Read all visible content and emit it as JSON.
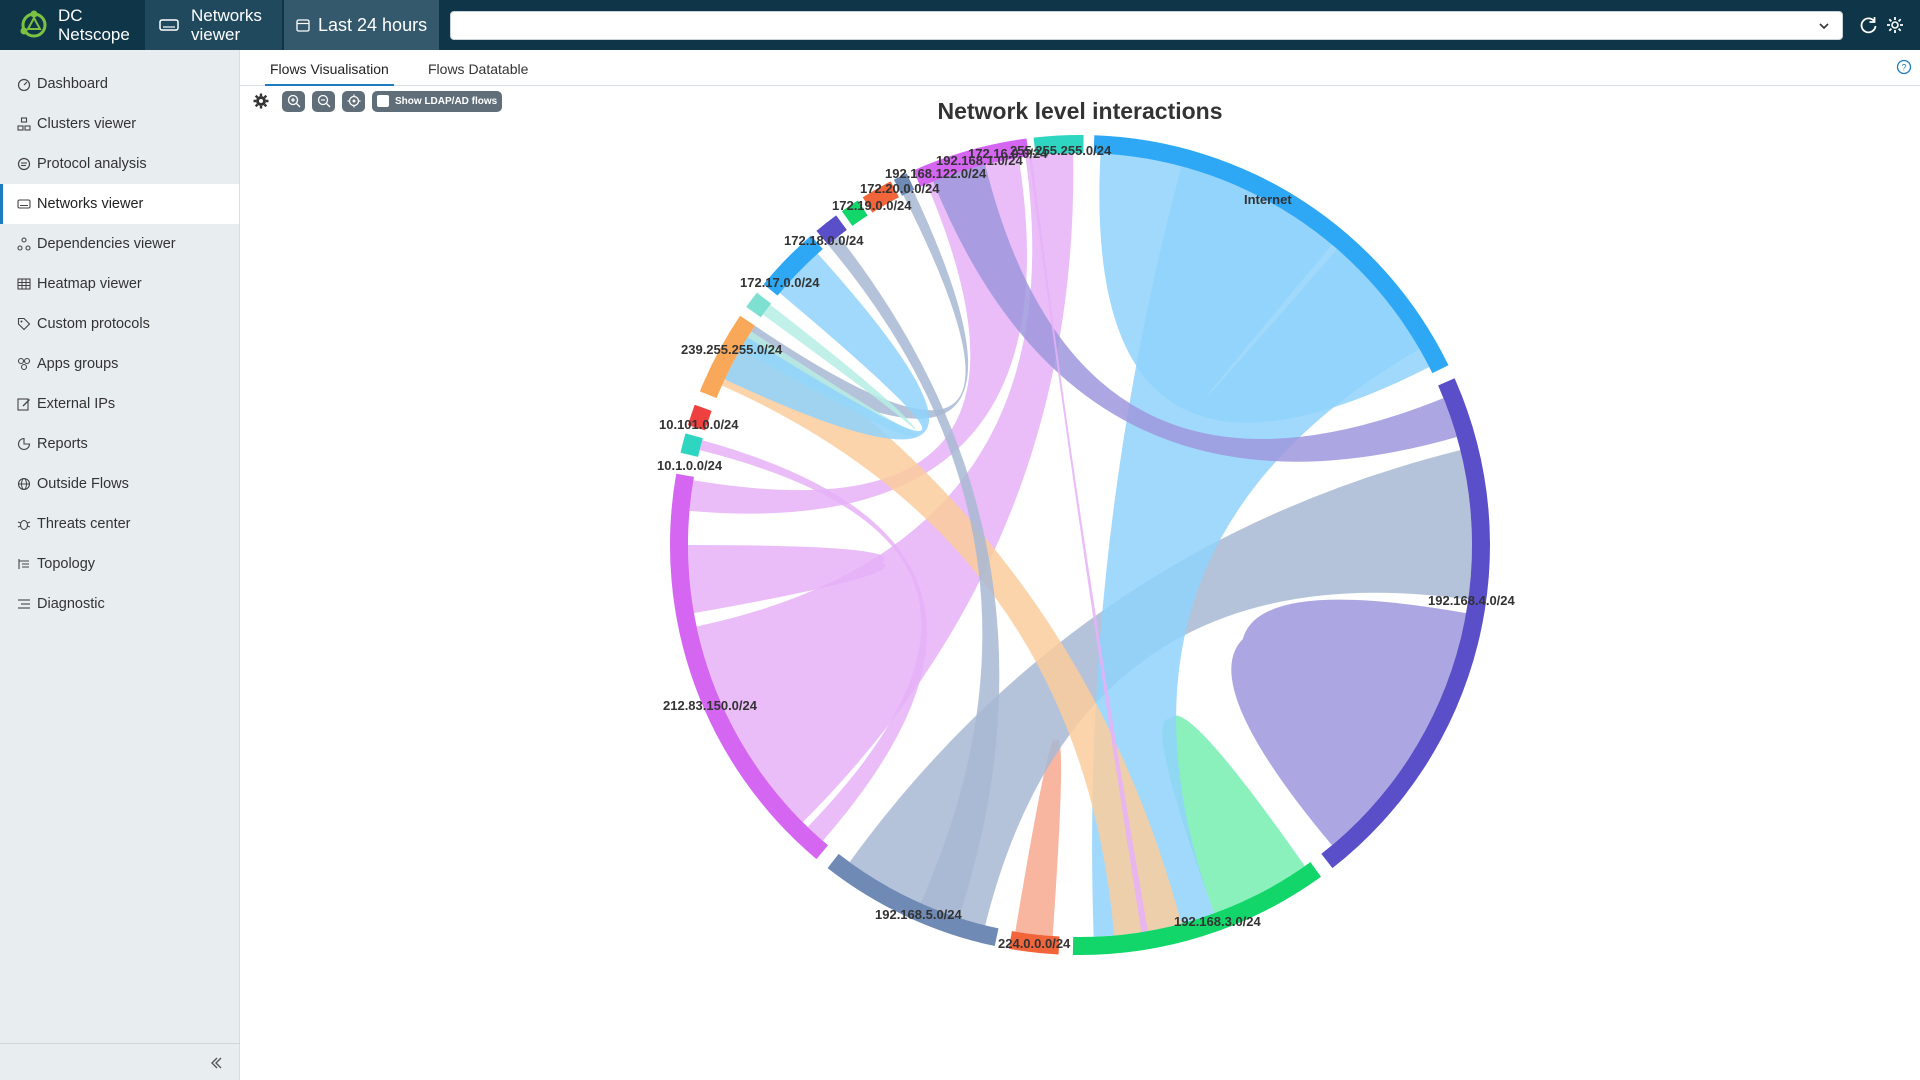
{
  "app": {
    "brand_line1": "DC",
    "brand_line2": "Netscope",
    "context_line1": "Networks",
    "context_line2": "viewer",
    "time_range": "Last 24 hours",
    "search_value": ""
  },
  "sidebar": {
    "items": [
      {
        "label": "Dashboard",
        "icon": "dashboard-icon"
      },
      {
        "label": "Clusters viewer",
        "icon": "clusters-icon"
      },
      {
        "label": "Protocol analysis",
        "icon": "protocol-icon"
      },
      {
        "label": "Networks viewer",
        "icon": "networks-icon"
      },
      {
        "label": "Dependencies viewer",
        "icon": "dependencies-icon"
      },
      {
        "label": "Heatmap viewer",
        "icon": "heatmap-icon"
      },
      {
        "label": "Custom protocols",
        "icon": "tag-icon"
      },
      {
        "label": "Apps groups",
        "icon": "apps-icon"
      },
      {
        "label": "External IPs",
        "icon": "edit-icon"
      },
      {
        "label": "Reports",
        "icon": "reports-icon"
      },
      {
        "label": "Outside Flows",
        "icon": "globe-icon"
      },
      {
        "label": "Threats center",
        "icon": "bug-icon"
      },
      {
        "label": "Topology",
        "icon": "topology-icon"
      },
      {
        "label": "Diagnostic",
        "icon": "diagnostic-icon"
      }
    ],
    "active": "Networks viewer"
  },
  "tabs": {
    "visualisation": "Flows Visualisation",
    "datatable": "Flows Datatable",
    "active": "Flows Visualisation"
  },
  "toolbar": {
    "ldap_label": "Show LDAP/AD flows",
    "ldap_checked": false
  },
  "chart_data": {
    "type": "chord",
    "title": "Network level interactions",
    "nodes": [
      {
        "name": "Internet",
        "color": "#2ea8f5"
      },
      {
        "name": "192.168.4.0/24",
        "color": "#5a4fc8"
      },
      {
        "name": "192.168.3.0/24",
        "color": "#12d669"
      },
      {
        "name": "224.0.0.0/24",
        "color": "#f2653a"
      },
      {
        "name": "192.168.5.0/24",
        "color": "#6f8ab4"
      },
      {
        "name": "212.83.150.0/24",
        "color": "#d466f2"
      },
      {
        "name": "10.1.0.0/24",
        "color": "#2ed5c1"
      },
      {
        "name": "10.101.0.0/24",
        "color": "#ef4040"
      },
      {
        "name": "239.255.255.0/24",
        "color": "#f9a85a"
      },
      {
        "name": "172.17.0.0/24",
        "color": "#7de0d0"
      },
      {
        "name": "172.18.0.0/24",
        "color": "#2ea8f5"
      },
      {
        "name": "172.19.0.0/24",
        "color": "#5a4fc8"
      },
      {
        "name": "172.20.0.0/24",
        "color": "#12d669"
      },
      {
        "name": "192.168.122.0/24",
        "color": "#f2653a"
      },
      {
        "name": "192.168.1.0/24",
        "color": "#6f8ab4"
      },
      {
        "name": "172.16.0.0/24",
        "color": "#d466f2"
      },
      {
        "name": "255.255.255.0/24",
        "color": "#2ed5c1"
      }
    ]
  }
}
